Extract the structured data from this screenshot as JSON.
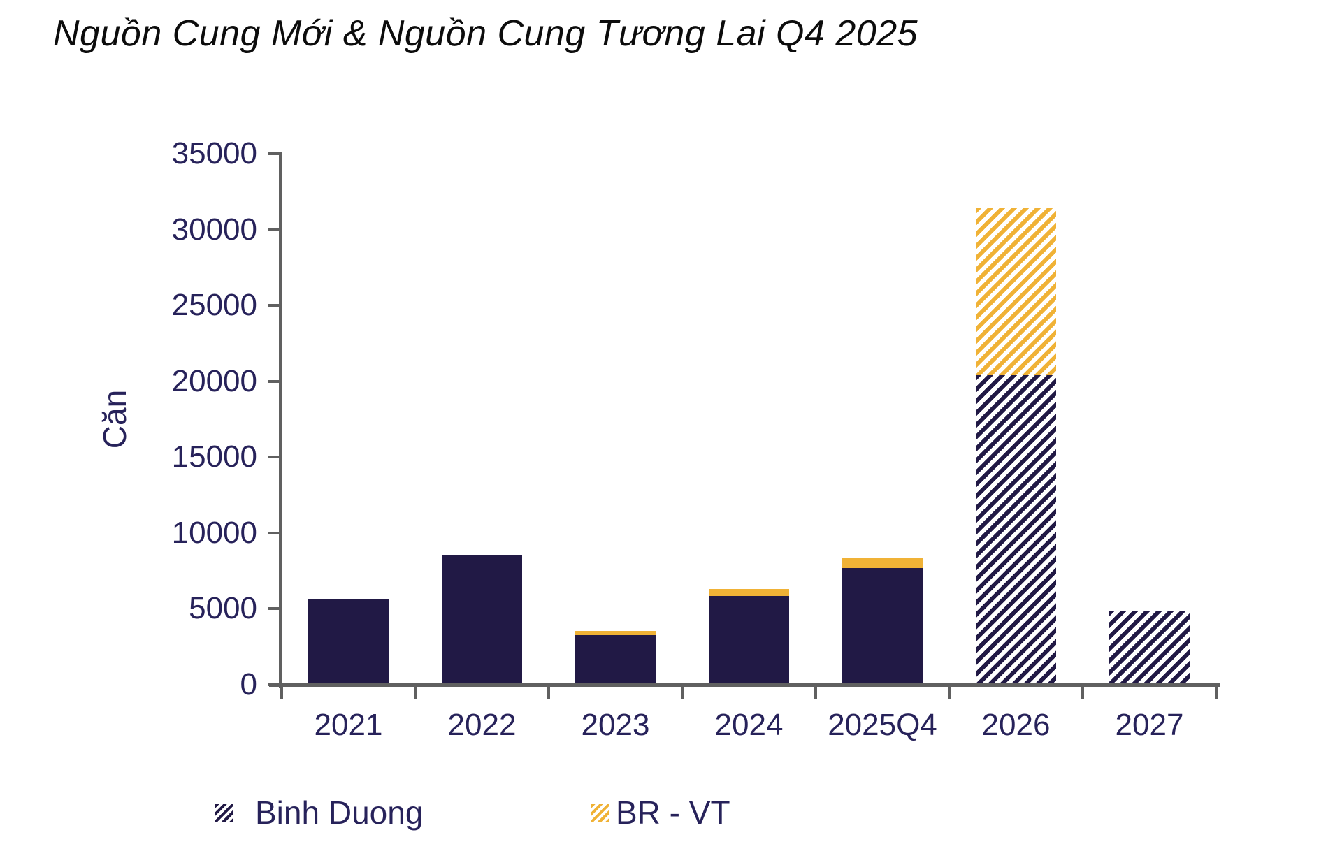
{
  "chart_data": {
    "type": "bar",
    "stacked": true,
    "title": "Nguồn Cung Mới & Nguồn Cung Tương Lai Q4 2025",
    "ylabel": "Căn",
    "xlabel": "",
    "ylim": [
      0,
      35000
    ],
    "yticks": [
      0,
      5000,
      10000,
      15000,
      20000,
      25000,
      30000,
      35000
    ],
    "ytick_labels": [
      "0",
      "5000",
      "10000",
      "15000",
      "20000",
      "25000",
      "30000",
      "35000"
    ],
    "categories": [
      "2021",
      "2022",
      "2023",
      "2024",
      "2025Q4",
      "2026",
      "2027"
    ],
    "series": [
      {
        "name": "Binh Duong",
        "color": "#211945",
        "values": [
          5600,
          8500,
          3250,
          5850,
          7700,
          20400,
          4900
        ]
      },
      {
        "name": "BR - VT",
        "color": "#f0b236",
        "values": [
          0,
          0,
          300,
          450,
          700,
          11000,
          0
        ]
      }
    ],
    "bar_fill_styles": [
      "solid",
      "solid",
      "solid",
      "solid",
      "solid",
      "hatched",
      "hatched"
    ],
    "grid": false,
    "legend_position": "bottom",
    "legend": [
      {
        "label": "Binh Duong",
        "color": "#211945",
        "pattern": "diagonal-hatch"
      },
      {
        "label": "BR - VT",
        "color": "#f0b236",
        "pattern": "diagonal-hatch"
      }
    ],
    "axis_color": "#606060",
    "label_color": "#27225a",
    "title_color": "#0c0c0c",
    "background_color": "#ffffff"
  }
}
